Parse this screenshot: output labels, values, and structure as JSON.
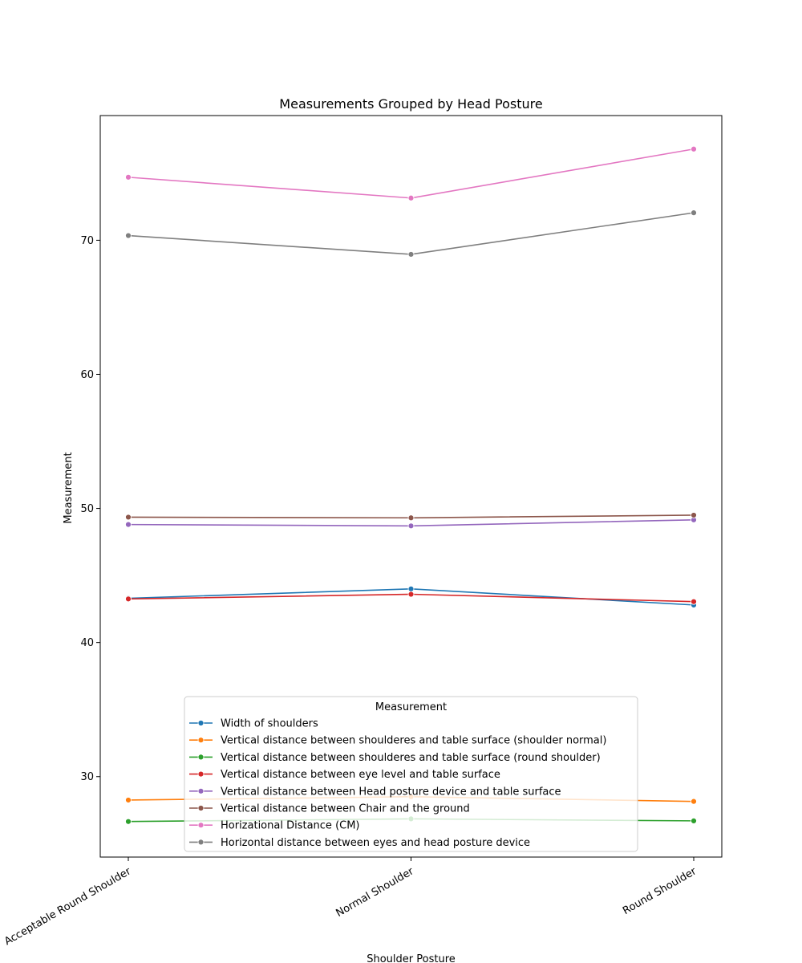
{
  "chart_data": {
    "type": "line",
    "title": "Measurements Grouped by Head Posture",
    "xlabel": "Shoulder Posture",
    "ylabel": "Measurement",
    "categories": [
      "Acceptable Round Shoulder",
      "Normal Shoulder",
      "Round Shoulder"
    ],
    "ylim": [
      24.0,
      79.3
    ],
    "yticks": [
      30,
      40,
      50,
      60,
      70
    ],
    "grid": false,
    "legend": {
      "title": "Measurement",
      "placement": "lower-center"
    },
    "series": [
      {
        "name": "Width of shoulders",
        "color": "#1f77b4",
        "values": [
          43.3,
          44.0,
          42.8
        ]
      },
      {
        "name": "Vertical distance between shoulderes and table surface (shoulder normal)",
        "color": "#ff7f0e",
        "values": [
          28.25,
          28.5,
          28.15
        ]
      },
      {
        "name": "Vertical distance between shoulderes and table surface (round shoulder)",
        "color": "#2ca02c",
        "values": [
          26.65,
          26.85,
          26.7
        ]
      },
      {
        "name": "Vertical distance between eye level and table surface",
        "color": "#d62728",
        "values": [
          43.25,
          43.6,
          43.05
        ]
      },
      {
        "name": "Vertical distance between Head posture device and table surface",
        "color": "#9467bd",
        "values": [
          48.8,
          48.7,
          49.15
        ]
      },
      {
        "name": "Vertical distance between Chair and the ground",
        "color": "#8c564b",
        "values": [
          49.35,
          49.3,
          49.5
        ]
      },
      {
        "name": "Horizational Distance (CM)",
        "color": "#e377c2",
        "values": [
          74.7,
          73.15,
          76.8
        ]
      },
      {
        "name": "Horizontal distance between eyes and head posture device",
        "color": "#7f7f7f",
        "values": [
          70.35,
          68.95,
          72.05
        ]
      }
    ]
  }
}
